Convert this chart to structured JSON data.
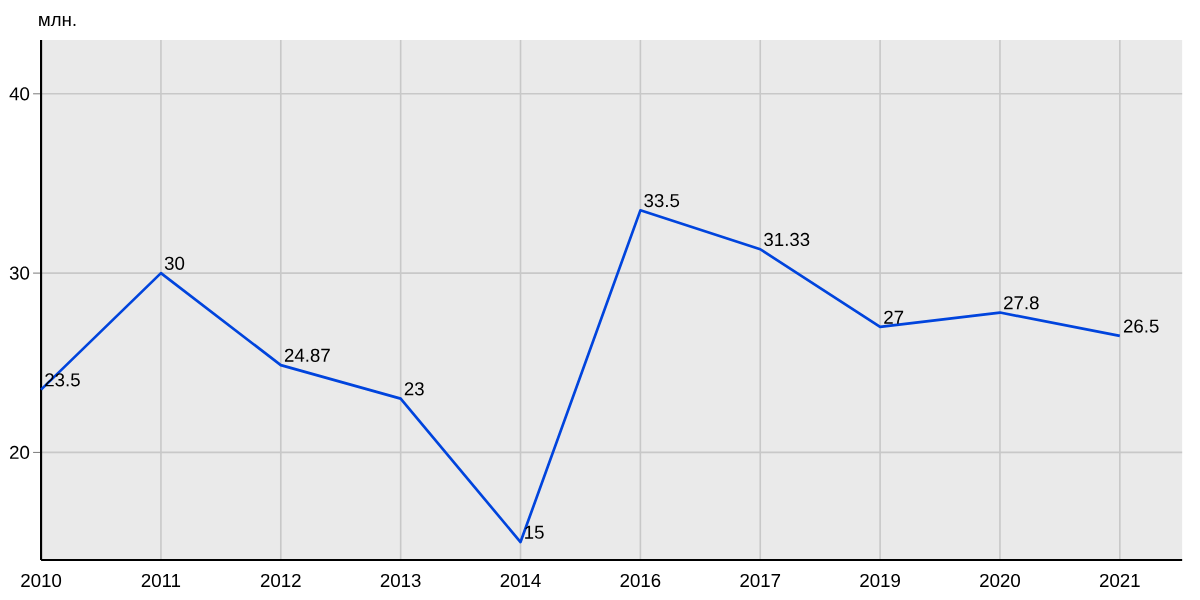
{
  "chart_data": {
    "type": "line",
    "ylabel": "млн.",
    "categories": [
      "2010",
      "2011",
      "2012",
      "2013",
      "2014",
      "2016",
      "2017",
      "2019",
      "2020",
      "2021"
    ],
    "series": [
      {
        "color": "#0044dd",
        "values": [
          23.5,
          30,
          24.87,
          23,
          15,
          33.5,
          31.33,
          27,
          27.8,
          26.5
        ]
      }
    ],
    "ylim": [
      14,
      43
    ],
    "yticks": [
      20,
      30,
      40
    ],
    "grid": true,
    "data_labels": true,
    "marker": "none",
    "line_style": "solid"
  }
}
